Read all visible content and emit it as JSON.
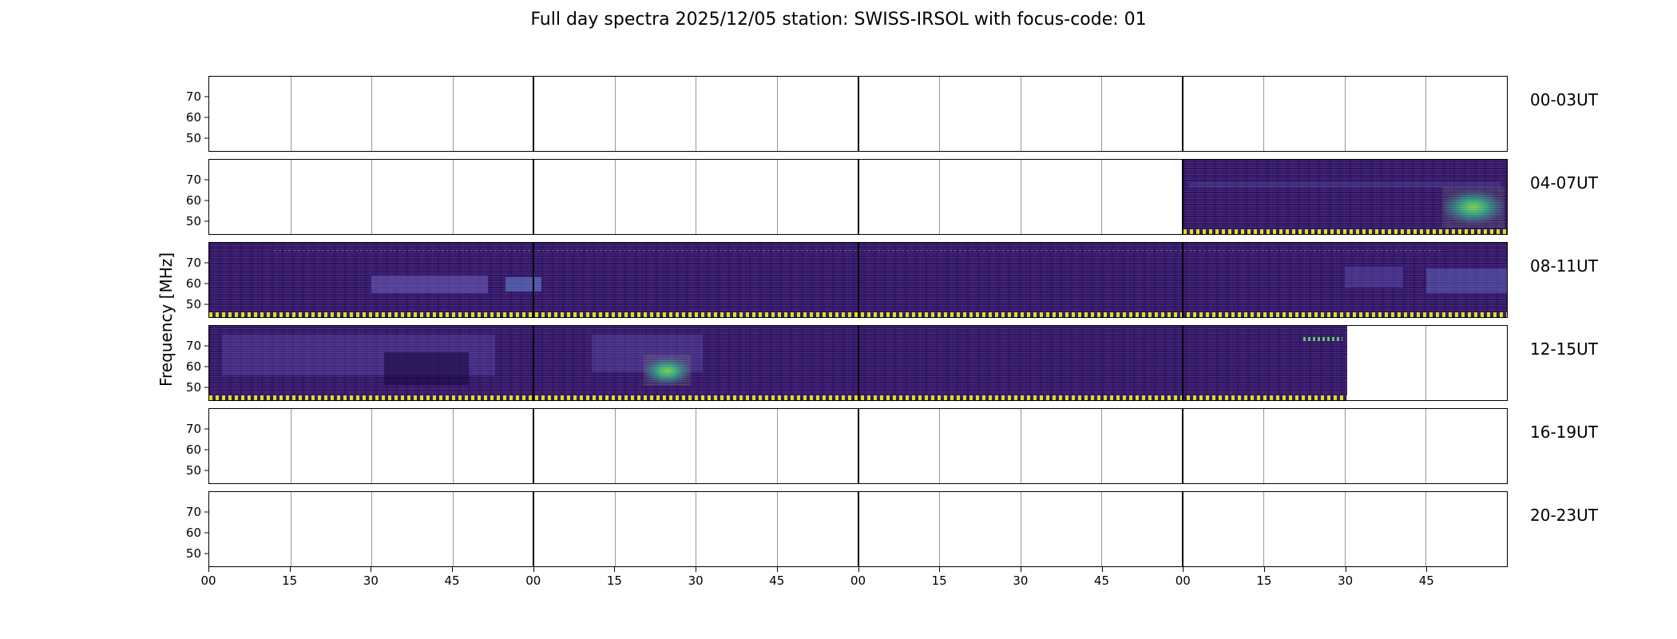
{
  "title": "Full day spectra 2025/12/05 station: SWISS-IRSOL with focus-code: 01",
  "ylabel": "Frequency [MHz]",
  "ytick_labels": [
    "70",
    "60",
    "50"
  ],
  "xtick_labels": [
    "00",
    "15",
    "30",
    "45",
    "00",
    "15",
    "30",
    "45",
    "00",
    "15",
    "30",
    "45",
    "00",
    "15",
    "30",
    "45"
  ],
  "row_labels": [
    "00-03UT",
    "04-07UT",
    "08-11UT",
    "12-15UT",
    "16-19UT",
    "20-23UT"
  ],
  "colors": {
    "spectrogram_base": "#38196b",
    "burst_green": "#35b779",
    "burst_teal": "#21918c",
    "strip_yellow": "#d8e219",
    "axis": "#000000",
    "background": "#ffffff"
  },
  "chart_data": {
    "type": "heatmap",
    "title": "Full day spectra 2025/12/05 station: SWISS-IRSOL with focus-code: 01",
    "date": "2025/12/05",
    "station": "SWISS-IRSOL",
    "focus_code": "01",
    "ylabel": "Frequency [MHz]",
    "yticks_mhz": [
      50,
      60,
      70
    ],
    "xticks_minutes": [
      "00",
      "15",
      "30",
      "45"
    ],
    "hours_per_row": 4,
    "layout": {
      "gridlines_every_min": 15,
      "hour_boundary_lines": true,
      "bottom_strip": "yellow dashed marker strip along bottom edge of regions with data",
      "legend": "none",
      "colormap": "viridis (dark purple background, green-teal bursts)"
    },
    "rows": [
      {
        "label": "00-03UT",
        "has_data": false,
        "coverage": [],
        "features": []
      },
      {
        "label": "04-07UT",
        "has_data": true,
        "coverage": [
          {
            "start_frac": 0.751,
            "end_frac": 1.0,
            "desc": "spectrogram data only in last hour of row (~07:00-08:00 UT)"
          }
        ],
        "features": [
          {
            "kind": "band",
            "x": 0.755,
            "y": 0.3,
            "w": 0.24,
            "h": 0.08,
            "color": "rgba(120,140,215,0.18)",
            "desc": "faint horizontal striping near 65 MHz"
          },
          {
            "kind": "blob",
            "x": 0.95,
            "y": 0.38,
            "w": 0.048,
            "h": 0.52,
            "color": "#35b779",
            "desc": "bright green-teal emission near end of row (~07:50 UT), ~50-65 MHz"
          }
        ]
      },
      {
        "label": "08-11UT",
        "has_data": true,
        "coverage": [
          {
            "start_frac": 0.0,
            "end_frac": 1.0,
            "desc": "continuous spectrogram data 08:00-12:00 UT"
          }
        ],
        "features": [
          {
            "kind": "band",
            "x": 0.125,
            "y": 0.44,
            "w": 0.09,
            "h": 0.24,
            "color": "rgba(112,96,190,0.55)",
            "desc": "lighter purple band near 60 MHz"
          },
          {
            "kind": "band",
            "x": 0.228,
            "y": 0.46,
            "w": 0.028,
            "h": 0.2,
            "color": "rgba(95,130,205,0.60)",
            "desc": "small blue-ish patch near 60 MHz"
          },
          {
            "kind": "dots",
            "x": 0.05,
            "y": 0.1,
            "w": 0.9,
            "h": 0.018,
            "color": "rgba(150,195,235,0.22)",
            "desc": "faint speckle line ~72 MHz"
          },
          {
            "kind": "band",
            "x": 0.875,
            "y": 0.32,
            "w": 0.045,
            "h": 0.28,
            "color": "rgba(100,88,185,0.40)",
            "desc": "lighter purple patch"
          },
          {
            "kind": "band",
            "x": 0.938,
            "y": 0.34,
            "w": 0.062,
            "h": 0.34,
            "color": "rgba(102,112,205,0.45)",
            "desc": "blue-purple patch at right end of row"
          }
        ]
      },
      {
        "label": "12-15UT",
        "has_data": true,
        "coverage": [
          {
            "start_frac": 0.0,
            "end_frac": 0.877,
            "desc": "spectrogram data 12:00 to ~15:30 UT, blank afterwards"
          }
        ],
        "features": [
          {
            "kind": "band",
            "x": 0.01,
            "y": 0.12,
            "w": 0.21,
            "h": 0.55,
            "color": "rgba(108,94,188,0.30)",
            "desc": "streaky lighter area in first hour"
          },
          {
            "kind": "dark",
            "x": 0.135,
            "y": 0.35,
            "w": 0.065,
            "h": 0.45,
            "color": "rgba(24,7,58,0.55)",
            "desc": "darker patch"
          },
          {
            "kind": "band",
            "x": 0.295,
            "y": 0.12,
            "w": 0.085,
            "h": 0.5,
            "color": "rgba(112,100,192,0.30)",
            "desc": "lighter streaks above burst"
          },
          {
            "kind": "blob",
            "x": 0.335,
            "y": 0.4,
            "w": 0.036,
            "h": 0.42,
            "color": "#21918c",
            "desc": "green-teal burst (~13:20 UT) near 60 MHz"
          },
          {
            "kind": "dots",
            "x": 0.843,
            "y": 0.15,
            "w": 0.03,
            "h": 0.05,
            "color": "#5ec962",
            "desc": "short green dashed feature (~15:20 UT) near 70 MHz"
          }
        ]
      },
      {
        "label": "16-19UT",
        "has_data": false,
        "coverage": [],
        "features": []
      },
      {
        "label": "20-23UT",
        "has_data": false,
        "coverage": [],
        "features": []
      }
    ]
  }
}
